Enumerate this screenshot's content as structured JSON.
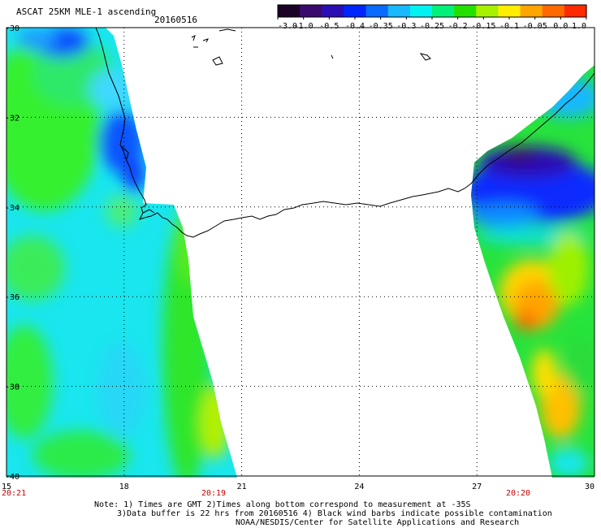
{
  "header": {
    "title": "ASCAT 25KM MLE-1 ascending",
    "date": "20160516"
  },
  "colorbar": {
    "tick_labels": [
      "-3.0",
      "-1.0",
      "-0.5",
      "-0.4",
      "-0.35",
      "-0.3",
      "-0.25",
      "-0.2",
      "-0.15",
      "-0.1",
      "-0.05",
      "0.0",
      "1.0"
    ],
    "colors": [
      "#1a0326",
      "#3b0a6e",
      "#2a10b4",
      "#0026ff",
      "#0a6bff",
      "#19b8ff",
      "#00f2f2",
      "#00f07a",
      "#23e000",
      "#a6f000",
      "#ffee00",
      "#ffa500",
      "#ff6a00",
      "#ff2a00"
    ]
  },
  "map": {
    "lat_labels": [
      "-30",
      "-32",
      "-34",
      "-36",
      "-38",
      "-40"
    ],
    "lon_labels": [
      "15",
      "18",
      "21",
      "24",
      "27",
      "30"
    ],
    "time_labels": [
      "20:21",
      "20:19",
      "20:20"
    ],
    "time_label_color": "#cc0000",
    "coast_color": "#000000",
    "grid_color": "#000000"
  },
  "footer": {
    "note_line1": "Note: 1) Times are GMT 2)Times along bottom correspond to measurement at -35S",
    "note_line2": "3)Data buffer is 22 hrs from 20160516 4) Black wind barbs indicate possible contamination",
    "credit": "NOAA/NESDIS/Center for Satellite Applications and Research"
  }
}
